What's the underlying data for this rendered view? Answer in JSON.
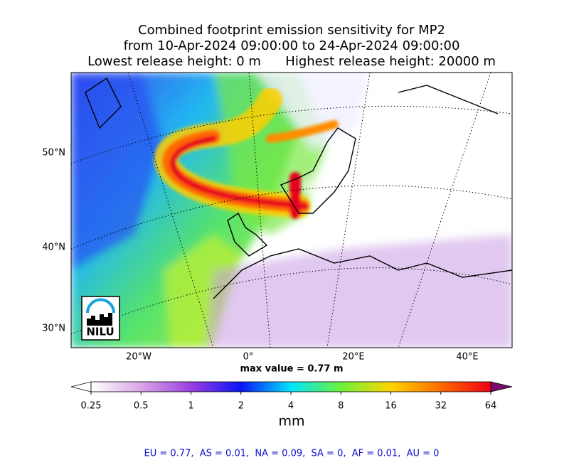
{
  "header": {
    "title_lines": [
      "Combined footprint emission sensitivity for MP2",
      "from 10-Apr-2024 09:00:00 to 24-Apr-2024 09:00:00",
      "Lowest release height: 0 m      Highest release height: 20000 m"
    ]
  },
  "map": {
    "lat_labels": [
      "50°N",
      "40°N",
      "30°N"
    ],
    "lon_labels": [
      "20°W",
      "0°",
      "20°E",
      "40°E"
    ],
    "max_value": "max value = 0.77 m",
    "logo": "NILU"
  },
  "colorbar": {
    "ticks": [
      0.25,
      0.5,
      1,
      2,
      4,
      8,
      16,
      32,
      64
    ],
    "scale": "log",
    "unit": "mm",
    "colors": [
      "#ffffff",
      "#d9a6e6",
      "#9b3fe0",
      "#0a14f5",
      "#00e5ff",
      "#6cf23a",
      "#ffd500",
      "#ff6a00",
      "#ee0016",
      "#7a0a6e"
    ]
  },
  "footer": {
    "summary": "EU = 0.77,  AS = 0.01,  NA = 0.09,  SA = 0,  AF = 0.01,  AU = 0"
  }
}
